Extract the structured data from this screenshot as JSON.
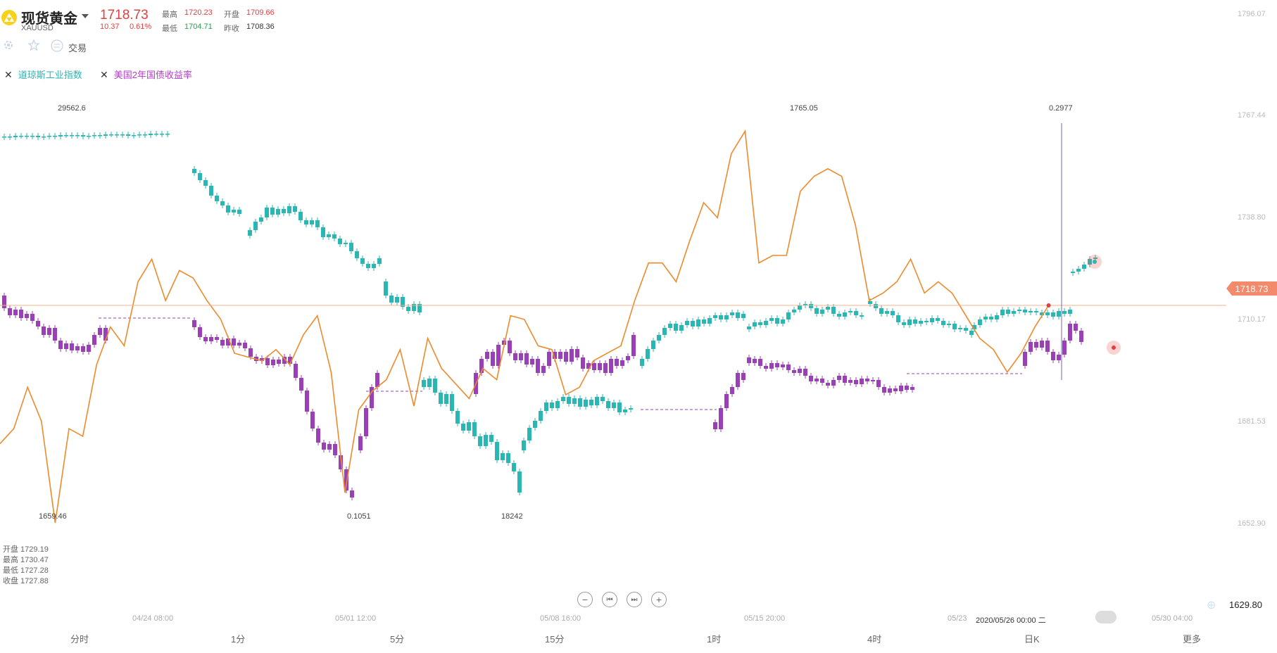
{
  "header": {
    "name": "现货黄金",
    "code": "XAUUSD",
    "price": "1718.73",
    "change": "10.37",
    "change_pct": "0.61%",
    "high_label": "最高",
    "high": "1720.23",
    "open_label": "开盘",
    "open": "1709.66",
    "low_label": "最低",
    "low": "1704.71",
    "prev_label": "昨收",
    "prev": "1708.36",
    "trade_label": "交易"
  },
  "indicators": [
    {
      "name": "道琼斯工业指数",
      "color": "#2ab6b3"
    },
    {
      "name": "美国2年国债收益率",
      "color": "#b13dc6"
    }
  ],
  "ohlc_box": {
    "open": "开盘 1729.19",
    "high": "最高 1730.47",
    "low": "最低 1727.28",
    "close": "收盘 1727.88"
  },
  "annotations": {
    "dow_high": "29562.6",
    "gold_low": "1659.46",
    "gold_high": "1765.05",
    "yield_low": "0.1051",
    "dow_low": "18242",
    "yield_high": "0.2977"
  },
  "y_axis": {
    "ticks": [
      "1796.07",
      "1767.44",
      "1738.80",
      "1710.17",
      "1681.53",
      "1652.90"
    ],
    "current": "1718.73",
    "bottom": "1629.80"
  },
  "time_axis": [
    "04/24 08:00",
    "05/01 12:00",
    "05/08 16:00",
    "05/15 20:00",
    "05/23",
    "2020/05/26 00:00 二",
    "05/30 04:00"
  ],
  "periods": [
    "分时",
    "1分",
    "5分",
    "15分",
    "1时",
    "4时",
    "日K",
    "更多"
  ],
  "colors": {
    "up": "#2ab6b3",
    "down": "#9a3fb8",
    "gold_line": "#ee8a2c",
    "price_line": "#f3b18f",
    "price_tag": "#f28a6b"
  },
  "chart_data": {
    "type": "line",
    "series": [
      {
        "name": "现货黄金",
        "x": [
          0,
          1,
          2,
          3,
          4,
          5,
          6,
          7,
          8,
          9,
          10,
          11,
          12,
          13,
          14,
          15,
          16,
          17,
          18,
          19,
          20,
          21,
          22,
          23,
          24,
          25,
          26,
          27,
          28,
          29,
          30,
          31,
          32,
          33,
          34,
          35,
          36,
          37,
          38,
          39,
          40,
          41,
          42,
          43,
          44,
          45,
          46,
          47,
          48,
          49,
          50,
          51,
          52,
          53,
          54,
          55,
          56,
          57,
          58,
          59,
          60,
          61,
          62,
          63,
          64,
          65,
          66,
          67,
          68,
          69,
          70,
          71,
          72,
          73,
          74,
          75,
          76,
          77,
          78,
          79,
          80,
          81
        ],
        "values": [
          1682,
          1686,
          1697,
          1688,
          1661,
          1686,
          1684,
          1703,
          1713,
          1708,
          1725,
          1731,
          1720,
          1728,
          1726,
          1720,
          1715,
          1706,
          1705,
          1704,
          1707,
          1703,
          1711,
          1716,
          1701,
          1669,
          1691,
          1696,
          1699,
          1707,
          1692,
          1710,
          1702,
          1698,
          1694,
          1702,
          1699,
          1716,
          1715,
          1708,
          1707,
          1695,
          1697,
          1704,
          1706,
          1708,
          1720,
          1730,
          1730,
          1725,
          1736,
          1746,
          1742,
          1759,
          1765,
          1730,
          1732,
          1732,
          1749,
          1753,
          1755,
          1753,
          1740,
          1720,
          1722,
          1725,
          1731,
          1722,
          1725,
          1722,
          1716,
          1710,
          1707,
          1701,
          1706,
          1713,
          1718.73,
          null,
          null,
          null,
          null,
          null
        ]
      }
    ],
    "xlabel": "",
    "ylabel": "",
    "ylim": [
      1629.8,
      1796.07
    ],
    "grid": false,
    "legend": "top-left"
  }
}
